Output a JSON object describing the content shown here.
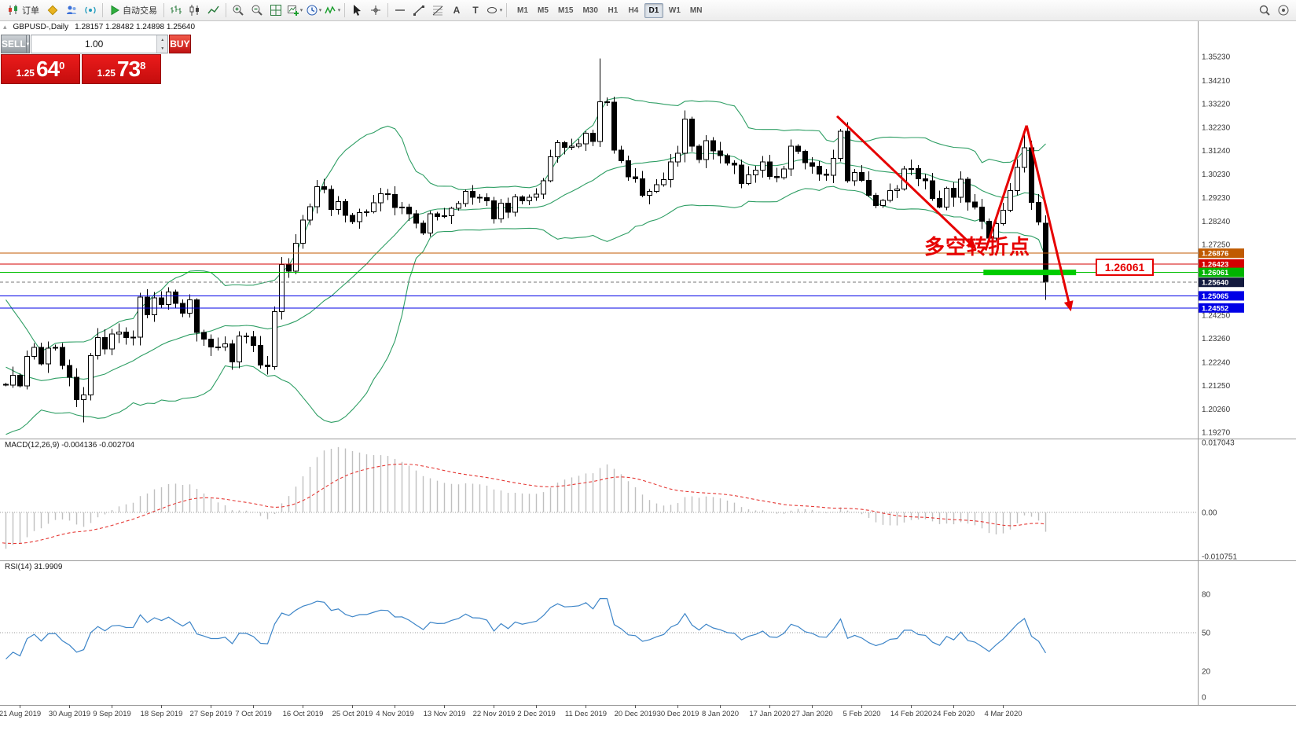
{
  "toolbar": {
    "new_order_label": "订单",
    "autotrade_label": "自动交易",
    "text_tool_label": "A",
    "label_tool_label": "T",
    "timeframes": [
      "M1",
      "M5",
      "M15",
      "M30",
      "H1",
      "H4",
      "D1",
      "W1",
      "MN"
    ],
    "active_timeframe": "D1"
  },
  "chart": {
    "title": "GBPUSD-,Daily",
    "ohlc": "1.28157 1.28482 1.24898 1.25640",
    "one_click": {
      "sell_label": "SELL",
      "buy_label": "BUY",
      "volume": "1.00",
      "sell_price_prefix": "1.25",
      "sell_price_big": "64",
      "sell_price_sup": "0",
      "buy_price_prefix": "1.25",
      "buy_price_big": "73",
      "buy_price_sup": "8"
    },
    "annotation_text": "多空转折点",
    "level_label": "1.26061"
  },
  "colors": {
    "candle_up": "#ffffff",
    "candle_down": "#000000",
    "candle_outline": "#000000",
    "bollinger": "#2e9e64",
    "macd_hist": "#c0c0c0",
    "macd_signal": "#e53935",
    "rsi": "#3d85c8",
    "arrow": "#e60000",
    "level_green": "#00cc00"
  },
  "chart_data": {
    "type": "candlestick",
    "symbol": "GBPUSD-",
    "period": "Daily",
    "price_max": 1.3523,
    "price_min": 1.1927,
    "price_axis_ticks": [
      "1.35230",
      "1.34210",
      "1.33220",
      "1.32230",
      "1.31240",
      "1.30230",
      "1.29230",
      "1.28240",
      "1.27250",
      "1.24250",
      "1.23260",
      "1.22240",
      "1.21250",
      "1.20260",
      "1.19270"
    ],
    "pre_closes": [
      1.2473,
      1.2438,
      1.2448,
      1.2454,
      1.2383,
      1.2218,
      1.2155,
      1.2161,
      1.2127,
      1.2162,
      1.2143,
      1.2168,
      1.214,
      1.2127,
      1.203,
      1.2074,
      1.2062,
      1.2055,
      1.2131
    ],
    "closes": [
      1.2128,
      1.2169,
      1.2124,
      1.2249,
      1.2287,
      1.2218,
      1.2285,
      1.2288,
      1.2211,
      1.216,
      1.2065,
      1.2085,
      1.2252,
      1.233,
      1.2281,
      1.2345,
      1.2352,
      1.2329,
      1.2331,
      1.2502,
      1.2426,
      1.2498,
      1.247,
      1.2523,
      1.2474,
      1.2433,
      1.249,
      1.2351,
      1.2323,
      1.229,
      1.229,
      1.2303,
      1.2225,
      1.2336,
      1.2332,
      1.2296,
      1.2213,
      1.2206,
      1.2439,
      1.264,
      1.2611,
      1.273,
      1.2828,
      1.2885,
      1.297,
      1.2959,
      1.2873,
      1.2907,
      1.2848,
      1.2822,
      1.2861,
      1.2863,
      1.2902,
      1.294,
      1.2937,
      1.2882,
      1.2883,
      1.2856,
      1.2815,
      1.2774,
      1.2855,
      1.2844,
      1.2847,
      1.2878,
      1.2899,
      1.295,
      1.2925,
      1.2923,
      1.291,
      1.2833,
      1.29,
      1.2862,
      1.2927,
      1.291,
      1.2925,
      1.2938,
      1.2996,
      1.3097,
      1.3157,
      1.3137,
      1.3143,
      1.3152,
      1.3197,
      1.3162,
      1.3331,
      1.333,
      1.3126,
      1.3081,
      1.3012,
      1.3003,
      1.2934,
      1.295,
      1.2978,
      1.3,
      1.3076,
      1.3113,
      1.3257,
      1.3143,
      1.3086,
      1.3166,
      1.3123,
      1.3102,
      1.307,
      1.3062,
      1.2984,
      1.3021,
      1.3041,
      1.3075,
      1.3013,
      1.3008,
      1.3046,
      1.3143,
      1.3121,
      1.3073,
      1.3057,
      1.3023,
      1.3019,
      1.309,
      1.3205,
      1.2996,
      1.3031,
      1.2997,
      1.2934,
      1.289,
      1.2912,
      1.2953,
      1.296,
      1.3046,
      1.3047,
      1.3003,
      1.2995,
      1.2921,
      1.2884,
      1.2964,
      1.2925,
      1.3002,
      1.2905,
      1.2884,
      1.2823,
      1.2752,
      1.2813,
      1.287,
      1.2953,
      1.3052,
      1.3135,
      1.2904,
      1.282,
      1.2564
    ],
    "overrides": {
      "11": {
        "l": 1.1968
      },
      "84": {
        "h": 1.3514
      },
      "118": {
        "h": 1.3215
      },
      "144": {
        "h": 1.32
      },
      "147": {
        "o": 1.28157,
        "h": 1.28482,
        "l": 1.24898,
        "c": 1.2564
      }
    },
    "x_labels": [
      {
        "t": "21 Aug 2019",
        "i": 2
      },
      {
        "t": "30 Aug 2019",
        "i": 9
      },
      {
        "t": "9 Sep 2019",
        "i": 15
      },
      {
        "t": "18 Sep 2019",
        "i": 22
      },
      {
        "t": "27 Sep 2019",
        "i": 29
      },
      {
        "t": "7 Oct 2019",
        "i": 35
      },
      {
        "t": "16 Oct 2019",
        "i": 42
      },
      {
        "t": "25 Oct 2019",
        "i": 49
      },
      {
        "t": "4 Nov 2019",
        "i": 55
      },
      {
        "t": "13 Nov 2019",
        "i": 62
      },
      {
        "t": "22 Nov 2019",
        "i": 69
      },
      {
        "t": "2 Dec 2019",
        "i": 75
      },
      {
        "t": "11 Dec 2019",
        "i": 82
      },
      {
        "t": "20 Dec 2019",
        "i": 89
      },
      {
        "t": "30 Dec 2019",
        "i": 95
      },
      {
        "t": "8 Jan 2020",
        "i": 101
      },
      {
        "t": "17 Jan 2020",
        "i": 108
      },
      {
        "t": "27 Jan 2020",
        "i": 114
      },
      {
        "t": "5 Feb 2020",
        "i": 121
      },
      {
        "t": "14 Feb 2020",
        "i": 128
      },
      {
        "t": "24 Feb 2020",
        "i": 134
      },
      {
        "t": "4 Mar 2020",
        "i": 141
      }
    ],
    "hlines": [
      {
        "price": 1.26876,
        "color": "#c05a00",
        "style": "solid",
        "badge": "1.26876",
        "badge_bg": "#c05a00"
      },
      {
        "price": 1.26423,
        "color": "#d40000",
        "style": "solid",
        "badge": "1.26423",
        "badge_bg": "#d40000"
      },
      {
        "price": 1.26061,
        "color": "#00bf00",
        "style": "solid",
        "badge": "1.26061",
        "badge_bg": "#00b400"
      },
      {
        "price": 1.2564,
        "color": "#777777",
        "style": "dash",
        "badge": "1.25640",
        "badge_bg": "#131a3e"
      },
      {
        "price": 1.25065,
        "color": "#0000e6",
        "style": "solid",
        "badge": "1.25065",
        "badge_bg": "#0000e6"
      },
      {
        "price": 1.24552,
        "color": "#0000e6",
        "style": "solid",
        "badge": "1.24552",
        "badge_bg": "#0000e6"
      }
    ],
    "thick_level": {
      "price": 1.26061,
      "i1": 138.2,
      "i2": 151.3,
      "color": "#00cc00"
    },
    "arrows": [
      {
        "from": {
          "i": 117.5,
          "p": 1.327
        },
        "to": {
          "i": 137.0,
          "p": 1.271
        },
        "head": true
      },
      {
        "from": {
          "i": 138.5,
          "p": 1.27
        },
        "to": {
          "i": 144.3,
          "p": 1.323
        },
        "head": false
      },
      {
        "from": {
          "i": 144.3,
          "p": 1.323
        },
        "to": {
          "i": 150.5,
          "p": 1.245
        },
        "head": true
      }
    ],
    "bollinger": {
      "period": 20,
      "deviation": 2
    },
    "macd": {
      "label_full": "MACD(12,26,9) -0.004136 -0.002704",
      "fast": 12,
      "slow": 26,
      "signal": 9,
      "scale_max": 0.017043,
      "scale_min": -0.010751,
      "scale_labels": [
        {
          "t": "0.017043",
          "v": 0.017043
        },
        {
          "t": "0.00",
          "v": 0
        },
        {
          "t": "-0.010751",
          "v": -0.010751
        }
      ]
    },
    "rsi": {
      "label_full": "RSI(14) 31.9909",
      "period": 14,
      "scale_labels": [
        {
          "t": "80",
          "v": 80
        },
        {
          "t": "50",
          "v": 50
        },
        {
          "t": "20",
          "v": 20
        },
        {
          "t": "0",
          "v": 0
        }
      ]
    }
  }
}
